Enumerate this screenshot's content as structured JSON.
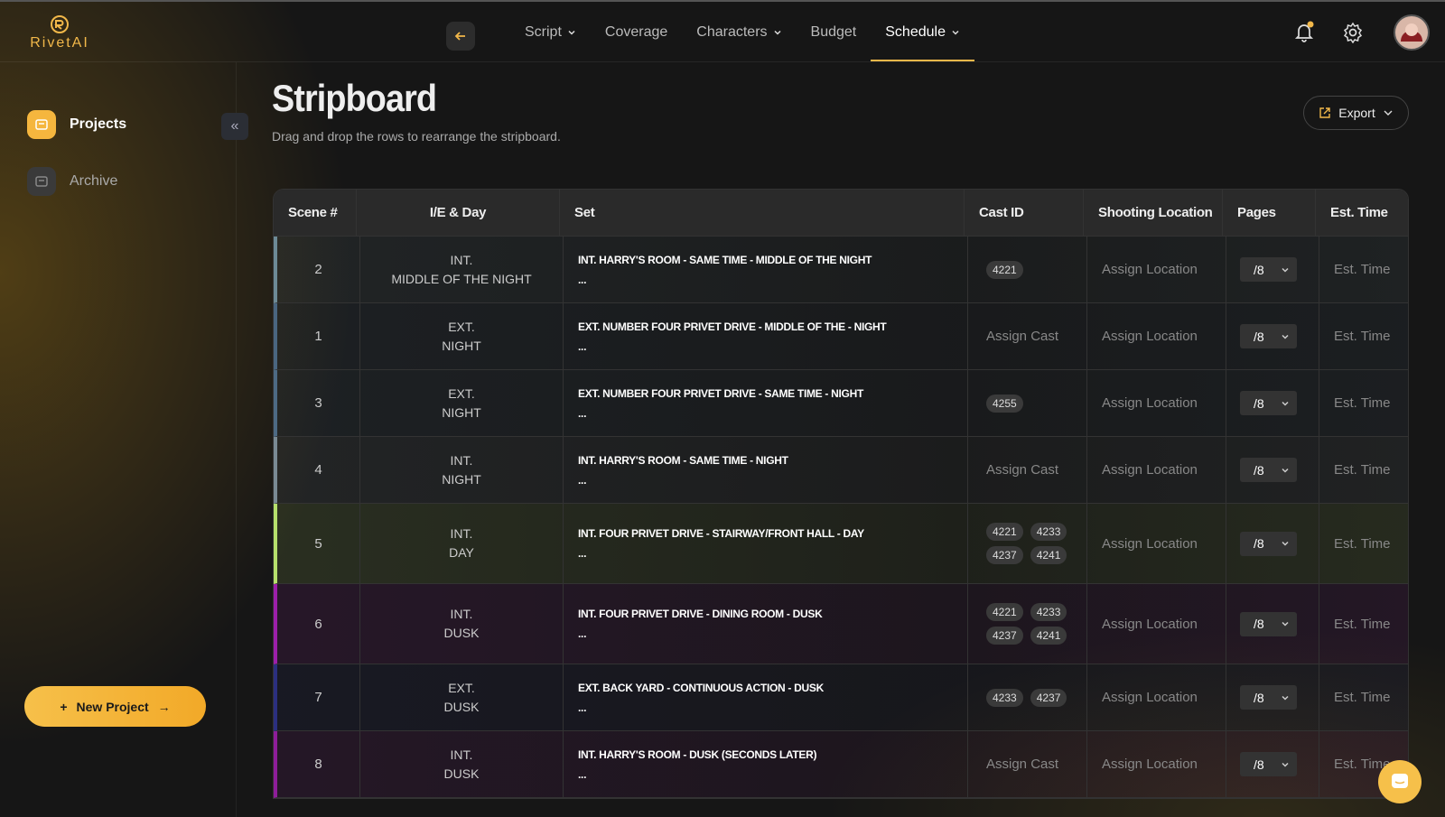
{
  "header": {
    "logo": "RivetAI",
    "nav": [
      {
        "label": "Script",
        "dropdown": true
      },
      {
        "label": "Coverage"
      },
      {
        "label": "Characters",
        "dropdown": true
      },
      {
        "label": "Budget"
      },
      {
        "label": "Schedule",
        "dropdown": true,
        "active": true
      }
    ]
  },
  "sidebar": {
    "items": [
      {
        "label": "Projects",
        "active": true
      },
      {
        "label": "Archive"
      }
    ],
    "new_project": "New Project"
  },
  "page": {
    "title": "Stripboard",
    "subtitle": "Drag and drop the rows to rearrange the stripboard.",
    "export": "Export"
  },
  "table": {
    "columns": [
      "Scene #",
      "I/E & Day",
      "Set",
      "Cast ID",
      "Shooting Location",
      "Pages",
      "Est. Time"
    ],
    "rows": [
      {
        "scene": 2,
        "ie": "INT.",
        "day": "MIDDLE OF THE NIGHT",
        "set": "INT. HARRY'S ROOM - SAME TIME - MIDDLE OF THE NIGHT",
        "note": "...",
        "cast": [
          "4221"
        ],
        "location": "Assign Location",
        "pages": "/8",
        "est_time": "Est. Time",
        "color": "#6d8a96"
      },
      {
        "scene": 1,
        "ie": "EXT.",
        "day": "NIGHT",
        "set": "EXT. NUMBER FOUR PRIVET DRIVE - MIDDLE OF THE - NIGHT",
        "note": "...",
        "cast_placeholder": "Assign Cast",
        "location": "Assign Location",
        "pages": "/8",
        "est_time": "Est. Time",
        "color": "#4a6680"
      },
      {
        "scene": 3,
        "ie": "EXT.",
        "day": "NIGHT",
        "set": "EXT. NUMBER FOUR PRIVET DRIVE - SAME TIME - NIGHT",
        "note": "...",
        "cast": [
          "4255"
        ],
        "location": "Assign Location",
        "pages": "/8",
        "est_time": "Est. Time",
        "color": "#4d6a84"
      },
      {
        "scene": 4,
        "ie": "INT.",
        "day": "NIGHT",
        "set": "INT. HARRY'S ROOM - SAME TIME - NIGHT",
        "note": "...",
        "cast_placeholder": "Assign Cast",
        "location": "Assign Location",
        "pages": "/8",
        "est_time": "Est. Time",
        "color": "#7a8a94"
      },
      {
        "scene": 5,
        "ie": "INT.",
        "day": "DAY",
        "set": "INT. FOUR PRIVET DRIVE - STAIRWAY/FRONT HALL - DAY",
        "note": "...",
        "cast": [
          "4221",
          "4233",
          "4237",
          "4241"
        ],
        "location": "Assign Location",
        "pages": "/8",
        "est_time": "Est. Time",
        "color": "#b6e06c"
      },
      {
        "scene": 6,
        "ie": "INT.",
        "day": "DUSK",
        "set": "INT. FOUR PRIVET DRIVE - DINING ROOM - DUSK",
        "note": "...",
        "cast": [
          "4221",
          "4233",
          "4237",
          "4241"
        ],
        "location": "Assign Location",
        "pages": "/8",
        "est_time": "Est. Time",
        "color": "#9c1faa"
      },
      {
        "scene": 7,
        "ie": "EXT.",
        "day": "DUSK",
        "set": "EXT. BACK YARD - CONTINUOUS ACTION - DUSK",
        "note": "...",
        "cast": [
          "4233",
          "4237"
        ],
        "location": "Assign Location",
        "pages": "/8",
        "est_time": "Est. Time",
        "color": "#2b2f80"
      },
      {
        "scene": 8,
        "ie": "INT.",
        "day": "DUSK",
        "set": "INT. HARRY'S ROOM - DUSK (SECONDS LATER)",
        "note": "...",
        "cast_placeholder": "Assign Cast",
        "location": "Assign Location",
        "pages": "/8",
        "est_time": "Est. Time",
        "color": "#8e1d9a"
      }
    ]
  }
}
